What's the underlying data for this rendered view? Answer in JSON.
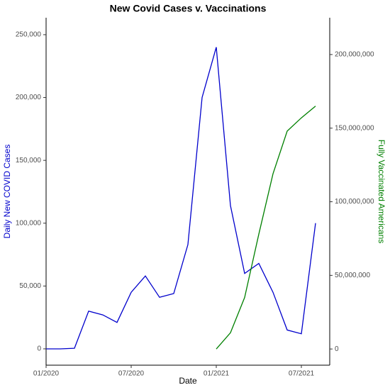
{
  "chart_data": {
    "type": "line",
    "title": "New Covid Cases v. Vaccinations",
    "xlabel": "Date",
    "ylabel": "Daily New COVID Cases",
    "y2label": "Fully Vaccinated Americans",
    "x": [
      "2020-01",
      "2020-02",
      "2020-03",
      "2020-04",
      "2020-05",
      "2020-06",
      "2020-07",
      "2020-08",
      "2020-09",
      "2020-10",
      "2020-11",
      "2020-12",
      "2021-01",
      "2021-02",
      "2021-03",
      "2021-04",
      "2021-05",
      "2021-06",
      "2021-07",
      "2021-08"
    ],
    "series": [
      {
        "color": "#0000cc",
        "values": [
          0,
          0,
          500,
          30000,
          27000,
          21000,
          45000,
          58000,
          41000,
          44000,
          83000,
          200000,
          240000,
          114000,
          60000,
          68000,
          45000,
          15000,
          12000,
          100000
        ]
      },
      {
        "color": "#008000",
        "axis": "y2",
        "values": [
          null,
          null,
          null,
          null,
          null,
          null,
          null,
          null,
          null,
          null,
          null,
          null,
          0,
          11000000,
          35000000,
          78000000,
          119000000,
          148000000,
          157000000,
          165000000
        ]
      }
    ],
    "xlim": [
      "2020-01",
      "2021-09"
    ],
    "xticks": [
      {
        "value": "2020-01",
        "label": "01/2020"
      },
      {
        "value": "2020-07",
        "label": "07/2020"
      },
      {
        "value": "2021-01",
        "label": "01/2021"
      },
      {
        "value": "2021-07",
        "label": "07/2021"
      }
    ],
    "ylim": [
      -13000,
      263500
    ],
    "yticks": [
      0,
      {
        "value": 50000,
        "label": "50,000"
      },
      {
        "value": 100000,
        "label": "100,000"
      },
      {
        "value": 150000,
        "label": "150,000"
      },
      {
        "value": 200000,
        "label": "200,000"
      },
      {
        "value": 250000,
        "label": "250,000"
      }
    ],
    "y2lim": [
      -11000000,
      225000000
    ],
    "y2ticks": [
      0,
      {
        "value": 50000000,
        "label": "50,000,000"
      },
      {
        "value": 100000000,
        "label": "100,000,000"
      },
      {
        "value": 150000000,
        "label": "150,000,000"
      },
      {
        "value": 200000000,
        "label": "200,000,000"
      }
    ],
    "grid": false
  }
}
